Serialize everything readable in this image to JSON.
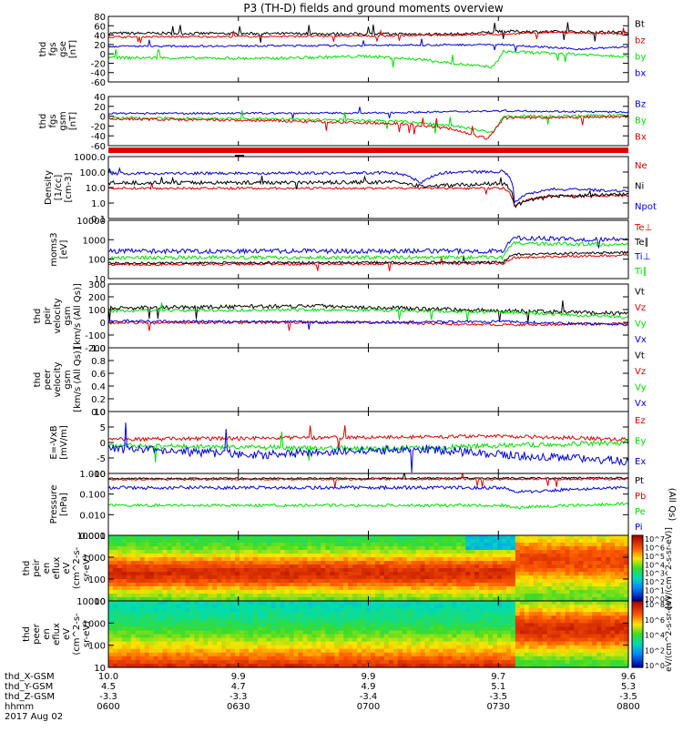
{
  "title": "P3 (TH-D) fields and ground moments overview",
  "date": "2017 Aug 02",
  "colors": {
    "black": "#000000",
    "red": "#e00000",
    "green": "#00e000",
    "blue": "#0000e0"
  },
  "ephemeris": {
    "labels": [
      "thd_X-GSM",
      "thd_Y-GSM",
      "thd_Z-GSM",
      "hhmm"
    ],
    "x": [
      "10.0",
      "9.9",
      "9.9",
      "9.7",
      "9.6"
    ],
    "y": [
      "4.5",
      "4.7",
      "4.9",
      "5.1",
      "5.3"
    ],
    "z": [
      "-3.3",
      "-3.3",
      "-3.4",
      "-3.5",
      "-3.5"
    ],
    "hhmm": [
      "0600",
      "0630",
      "0700",
      "0730",
      "0800"
    ]
  },
  "chart_data": [
    {
      "type": "line",
      "ylabel": [
        "thd",
        "fgs",
        "gse",
        "[nT]"
      ],
      "ticks": [
        "80",
        "60",
        "40",
        "20",
        "0",
        "-20",
        "-40",
        "-60"
      ],
      "ylim": [
        -60,
        80
      ],
      "series": [
        {
          "name": "Bt",
          "color": "black",
          "segments": [
            [
              0,
              44
            ],
            [
              0.68,
              42
            ],
            [
              0.76,
              48
            ],
            [
              1,
              46
            ]
          ],
          "noise": 3,
          "spikes": 8
        },
        {
          "name": "bz",
          "color": "red",
          "segments": [
            [
              0,
              36
            ],
            [
              0.5,
              38
            ],
            [
              0.76,
              42
            ],
            [
              0.86,
              46
            ],
            [
              1,
              42
            ]
          ],
          "noise": 2,
          "spikes": 6
        },
        {
          "name": "by",
          "color": "green",
          "segments": [
            [
              0,
              -8
            ],
            [
              0.3,
              -10
            ],
            [
              0.5,
              -5
            ],
            [
              0.6,
              -12
            ],
            [
              0.7,
              -25
            ],
            [
              0.74,
              -28
            ],
            [
              0.76,
              5
            ],
            [
              1,
              -5
            ]
          ],
          "noise": 3,
          "spikes": 4
        },
        {
          "name": "bx",
          "color": "blue",
          "segments": [
            [
              0,
              16
            ],
            [
              0.5,
              18
            ],
            [
              0.76,
              20
            ],
            [
              0.9,
              10
            ],
            [
              1,
              15
            ]
          ],
          "noise": 2,
          "spikes": 4
        }
      ]
    },
    {
      "type": "line",
      "ylabel": [
        "thd",
        "fgs",
        "gsm",
        "[nT]"
      ],
      "ticks": [
        "40",
        "20",
        "0",
        "-20",
        "-40",
        "-60"
      ],
      "ylim": [
        -70,
        40
      ],
      "series": [
        {
          "name": "Bz",
          "color": "blue",
          "segments": [
            [
              0,
              2
            ],
            [
              0.5,
              3
            ],
            [
              0.76,
              8
            ],
            [
              1,
              5
            ]
          ],
          "noise": 2,
          "spikes": 4
        },
        {
          "name": "By",
          "color": "green",
          "segments": [
            [
              0,
              -8
            ],
            [
              0.3,
              -10
            ],
            [
              0.55,
              -15
            ],
            [
              0.66,
              -25
            ],
            [
              0.74,
              -40
            ],
            [
              0.76,
              -5
            ],
            [
              1,
              -2
            ]
          ],
          "noise": 3,
          "spikes": 5
        },
        {
          "name": "Bx",
          "color": "red",
          "segments": [
            [
              0,
              -10
            ],
            [
              0.3,
              -14
            ],
            [
              0.55,
              -20
            ],
            [
              0.66,
              -32
            ],
            [
              0.73,
              -55
            ],
            [
              0.76,
              -8
            ],
            [
              1,
              -5
            ]
          ],
          "noise": 3,
          "spikes": 8
        }
      ]
    },
    {
      "type": "line",
      "ylabel": [
        "Density",
        "[1/cc]",
        "[cm-3]"
      ],
      "ticks": [
        "1000.0",
        "100.0",
        "10.0",
        "1.0",
        "0.1"
      ],
      "scale": "log",
      "ylim": [
        0.1,
        1000
      ],
      "series": [
        {
          "name": "Ne",
          "color": "red",
          "segments": [
            [
              0,
              9
            ],
            [
              0.76,
              9
            ],
            [
              0.78,
              0.7
            ],
            [
              0.85,
              3
            ],
            [
              1,
              3
            ]
          ],
          "noise": 0.05,
          "spikes": 2
        },
        {
          "name": "Ni",
          "color": "black",
          "segments": [
            [
              0,
              20
            ],
            [
              0.55,
              22
            ],
            [
              0.6,
              12
            ],
            [
              0.76,
              18
            ],
            [
              0.78,
              0.6
            ],
            [
              0.85,
              2.5
            ],
            [
              1,
              3.5
            ]
          ],
          "noise": 0.08,
          "spikes": 3
        },
        {
          "name": "Npot",
          "color": "blue",
          "segments": [
            [
              0,
              80
            ],
            [
              0.55,
              90
            ],
            [
              0.6,
              18
            ],
            [
              0.65,
              95
            ],
            [
              0.76,
              110
            ],
            [
              0.78,
              1
            ],
            [
              0.85,
              8
            ],
            [
              1,
              6
            ]
          ],
          "noise": 0.06,
          "spikes": 3
        }
      ]
    },
    {
      "type": "line",
      "ylabel": [
        "moms3",
        "[eV]"
      ],
      "ticks": [
        "10000",
        "1000",
        "100",
        "10"
      ],
      "scale": "log",
      "ylim": [
        10,
        10000
      ],
      "series": [
        {
          "name": "Te⊥",
          "color": "red",
          "segments": [
            [
              0,
              52
            ],
            [
              0.76,
              60
            ],
            [
              0.78,
              120
            ],
            [
              1,
              160
            ]
          ],
          "noise": 0.04,
          "spikes": 2
        },
        {
          "name": "Te∥",
          "color": "black",
          "segments": [
            [
              0,
              62
            ],
            [
              0.76,
              70
            ],
            [
              0.78,
              180
            ],
            [
              1,
              220
            ]
          ],
          "noise": 0.04,
          "spikes": 2
        },
        {
          "name": "Ti⊥",
          "color": "blue",
          "segments": [
            [
              0,
              260
            ],
            [
              0.76,
              260
            ],
            [
              0.78,
              1200
            ],
            [
              1,
              1000
            ]
          ],
          "noise": 0.08,
          "spikes": 2
        },
        {
          "name": "Ti∥",
          "color": "green",
          "segments": [
            [
              0,
              120
            ],
            [
              0.76,
              125
            ],
            [
              0.78,
              650
            ],
            [
              1,
              550
            ]
          ],
          "noise": 0.06,
          "spikes": 2
        }
      ]
    },
    {
      "type": "line",
      "ylabel": [
        "thd",
        "peir",
        "velocity",
        "gsm",
        "[km/s (All Qs)]"
      ],
      "ticks": [
        "300",
        "200",
        "100",
        "0",
        "-100",
        "-200"
      ],
      "ylim": [
        -200,
        300
      ],
      "series": [
        {
          "name": "Vt",
          "color": "black",
          "segments": [
            [
              0,
              110
            ],
            [
              0.4,
              130
            ],
            [
              0.76,
              90
            ],
            [
              1,
              70
            ]
          ],
          "noise": 15,
          "spikes": 3
        },
        {
          "name": "Vz",
          "color": "red",
          "segments": [
            [
              0,
              -5
            ],
            [
              0.5,
              0
            ],
            [
              0.76,
              -20
            ],
            [
              1,
              -10
            ]
          ],
          "noise": 10,
          "spikes": 2
        },
        {
          "name": "Vy",
          "color": "green",
          "segments": [
            [
              0,
              90
            ],
            [
              0.4,
              100
            ],
            [
              0.76,
              80
            ],
            [
              1,
              40
            ]
          ],
          "noise": 12,
          "spikes": 2
        },
        {
          "name": "Vx",
          "color": "blue",
          "segments": [
            [
              0,
              10
            ],
            [
              0.5,
              0
            ],
            [
              0.76,
              5
            ],
            [
              1,
              -20
            ]
          ],
          "noise": 10,
          "spikes": 2
        }
      ]
    },
    {
      "type": "line",
      "ylabel": [
        "thd",
        "peer",
        "velocity",
        "gsm",
        "[km/s (All Qs)]"
      ],
      "ticks": [
        "1.0",
        "0.8",
        "0.6",
        "0.4",
        "0.2",
        "0.0"
      ],
      "ylim": [
        0,
        1
      ],
      "legend_only": [
        "Vt",
        "Vz",
        "Vy",
        "Vx"
      ],
      "series": []
    },
    {
      "type": "line",
      "ylabel": [
        "E=-VxB",
        "[mV/m]"
      ],
      "ticks": [
        "10",
        "5",
        "0",
        "-5",
        "-10"
      ],
      "ylim": [
        -10,
        10
      ],
      "series": [
        {
          "name": "Ez",
          "color": "red",
          "segments": [
            [
              0,
              1
            ],
            [
              0.76,
              2
            ],
            [
              1,
              1
            ]
          ],
          "noise": 0.6,
          "spikes": 2
        },
        {
          "name": "Ey",
          "color": "green",
          "segments": [
            [
              0,
              -1
            ],
            [
              0.5,
              -2
            ],
            [
              0.76,
              -1
            ],
            [
              1,
              0
            ]
          ],
          "noise": 0.8,
          "spikes": 2
        },
        {
          "name": "Ex",
          "color": "blue",
          "segments": [
            [
              0,
              -2
            ],
            [
              0.3,
              -4
            ],
            [
              0.6,
              -2
            ],
            [
              0.76,
              -4
            ],
            [
              1,
              -6
            ]
          ],
          "noise": 1.4,
          "spikes": 4
        }
      ]
    },
    {
      "type": "line",
      "ylabel": [
        "Pressure",
        "[nPa]"
      ],
      "ticks": [
        "1.000",
        "0.100",
        "0.010",
        "0.001"
      ],
      "scale": "log",
      "ylim": [
        0.001,
        2
      ],
      "side_label": "(All Qs)",
      "series": [
        {
          "name": "Pt",
          "color": "black",
          "segments": [
            [
              0,
              1.05
            ],
            [
              1,
              1.15
            ]
          ],
          "noise": 0.03,
          "spikes": 2
        },
        {
          "name": "Pb",
          "color": "red",
          "segments": [
            [
              0,
              0.95
            ],
            [
              1,
              1.0
            ]
          ],
          "noise": 0.03,
          "spikes": 8
        },
        {
          "name": "Pe",
          "color": "green",
          "segments": [
            [
              0,
              0.04
            ],
            [
              0.76,
              0.04
            ],
            [
              0.78,
              0.03
            ],
            [
              1,
              0.05
            ]
          ],
          "noise": 0.05,
          "spikes": 2
        },
        {
          "name": "Pi",
          "color": "blue",
          "segments": [
            [
              0,
              0.35
            ],
            [
              0.76,
              0.35
            ],
            [
              0.78,
              0.2
            ],
            [
              1,
              0.35
            ]
          ],
          "noise": 0.06,
          "spikes": 2
        }
      ]
    },
    {
      "type": "heatmap",
      "ylabel": [
        "thd",
        "peir",
        "en",
        "eflux",
        "eV",
        "(cm^2-s-",
        "sr-eV)"
      ],
      "ticks": [
        "10000",
        "1000",
        "100",
        "10"
      ],
      "colorbar_ticks": [
        "10^7",
        "10^6",
        "10^5",
        "10^4",
        "10^3",
        "10^2",
        "10^1",
        "10^0"
      ],
      "colorbar_label": "[eV/(cm^2-s-sr-eV)]"
    },
    {
      "type": "heatmap",
      "ylabel": [
        "thd",
        "peer",
        "en",
        "eflux",
        "eV",
        "(cm^2-s-",
        "sr-eV)"
      ],
      "ticks": [
        "10000",
        "1000",
        "100",
        "10"
      ],
      "colorbar_ticks": [
        "10^8",
        "10^6",
        "10^4",
        "10^2",
        "10^0"
      ],
      "colorbar_label": "eV/(cm^2-s-sr-eV)"
    }
  ]
}
